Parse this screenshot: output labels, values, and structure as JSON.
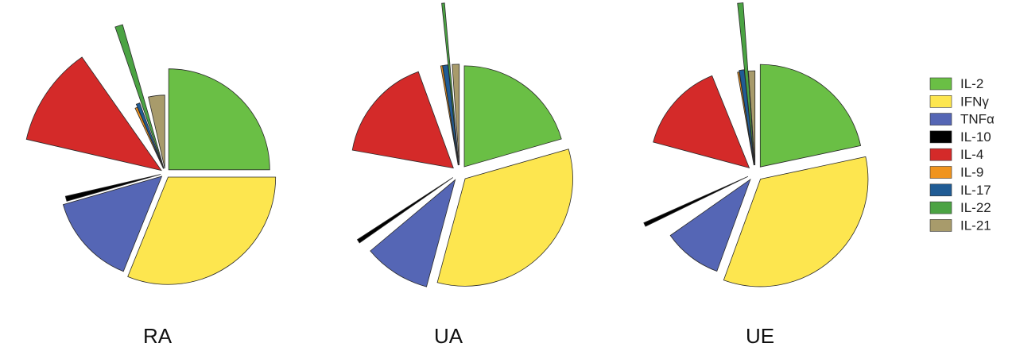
{
  "chart_data": {
    "type": "pie",
    "style": "exploded-polar-area",
    "legend_position": "right",
    "categories": [
      "IL-2",
      "IFNγ",
      "TNFα",
      "IL-10",
      "IL-4",
      "IL-9",
      "IL-17",
      "IL-22",
      "IL-21"
    ],
    "colors": [
      "#6abf45",
      "#fde64f",
      "#5566b5",
      "#000000",
      "#d42a29",
      "#f0941e",
      "#205c95",
      "#4ba343",
      "#a89b6b"
    ],
    "pies": [
      {
        "label": "RA",
        "slices": [
          {
            "name": "IL-2",
            "start": 0,
            "end": 90,
            "radius": 0.62
          },
          {
            "name": "IFNγ",
            "start": 90,
            "end": 202,
            "radius": 0.66
          },
          {
            "name": "TNFα",
            "start": 202,
            "end": 254,
            "radius": 0.63
          },
          {
            "name": "IL-10",
            "start": 254,
            "end": 257,
            "radius": 0.6
          },
          {
            "name": "IL-4",
            "start": 283,
            "end": 325,
            "radius": 0.85
          },
          {
            "name": "IL-9",
            "start": 335,
            "end": 337,
            "radius": 0.41
          },
          {
            "name": "IL-17",
            "start": 337,
            "end": 340,
            "radius": 0.43
          },
          {
            "name": "IL-22",
            "start": 341,
            "end": 344,
            "radius": 0.92
          },
          {
            "name": "IL-21",
            "start": 347,
            "end": 360,
            "radius": 0.45
          }
        ]
      },
      {
        "label": "UA",
        "slices": [
          {
            "name": "IL-2",
            "start": 0,
            "end": 74,
            "radius": 0.62
          },
          {
            "name": "IFNγ",
            "start": 74,
            "end": 195,
            "radius": 0.66
          },
          {
            "name": "TNFα",
            "start": 195,
            "end": 230,
            "radius": 0.68
          },
          {
            "name": "IL-10",
            "start": 235,
            "end": 237,
            "radius": 0.7
          },
          {
            "name": "IL-4",
            "start": 280,
            "end": 340,
            "radius": 0.63
          },
          {
            "name": "IL-9",
            "start": 350,
            "end": 351,
            "radius": 0.62
          },
          {
            "name": "IL-17",
            "start": 351,
            "end": 354,
            "radius": 0.62
          },
          {
            "name": "IL-22",
            "start": 354,
            "end": 355,
            "radius": 1.0
          },
          {
            "name": "IL-21",
            "start": 356,
            "end": 360,
            "radius": 0.62
          }
        ]
      },
      {
        "label": "UE",
        "slices": [
          {
            "name": "IL-2",
            "start": 0,
            "end": 78,
            "radius": 0.63
          },
          {
            "name": "IFNγ",
            "start": 78,
            "end": 200,
            "radius": 0.66
          },
          {
            "name": "TNFα",
            "start": 200,
            "end": 235,
            "radius": 0.6
          },
          {
            "name": "IL-10",
            "start": 244,
            "end": 246,
            "radius": 0.7
          },
          {
            "name": "IL-4",
            "start": 285,
            "end": 338,
            "radius": 0.61
          },
          {
            "name": "IL-9",
            "start": 350,
            "end": 351,
            "radius": 0.58
          },
          {
            "name": "IL-17",
            "start": 351,
            "end": 354,
            "radius": 0.59
          },
          {
            "name": "IL-22",
            "start": 354,
            "end": 356,
            "radius": 1.0
          },
          {
            "name": "IL-21",
            "start": 356,
            "end": 360,
            "radius": 0.58
          }
        ]
      }
    ]
  }
}
